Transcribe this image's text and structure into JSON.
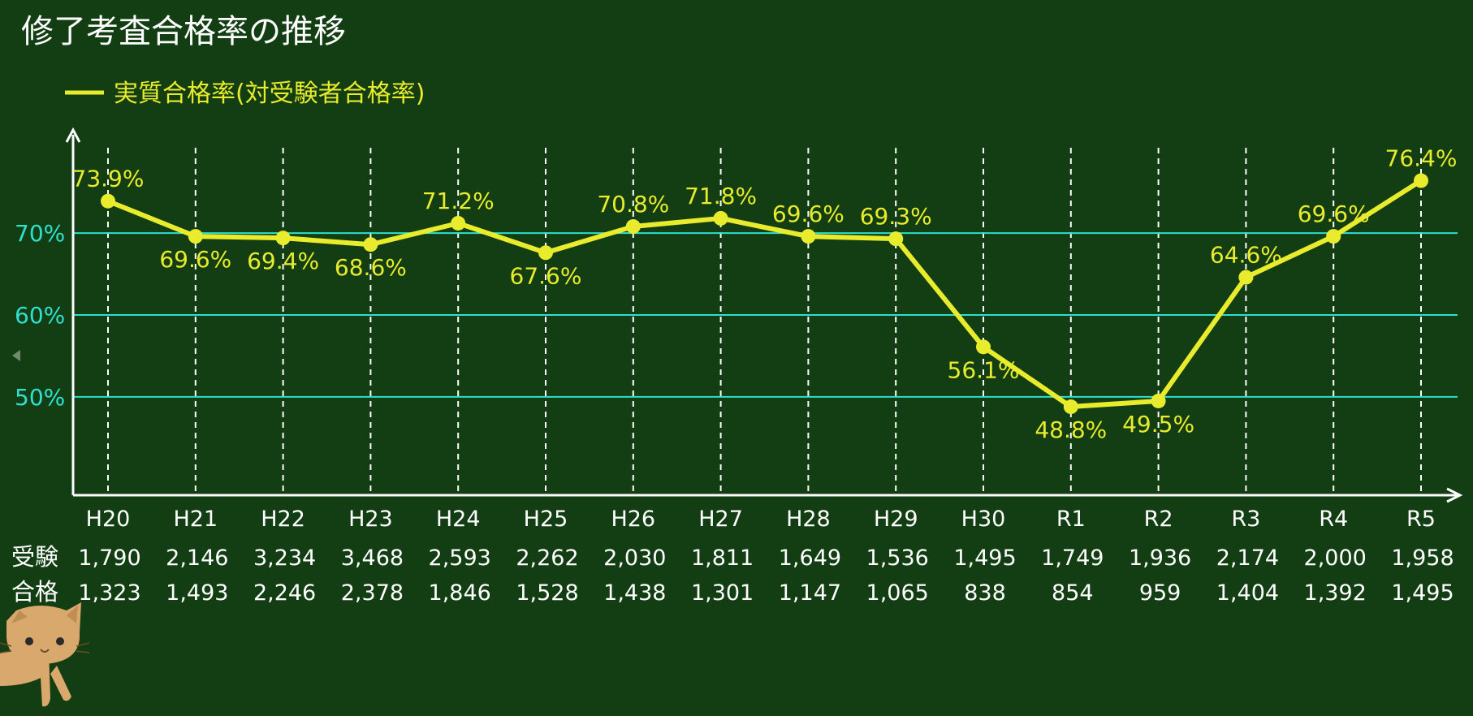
{
  "chart_data": {
    "type": "line",
    "title": "修了考査合格率の推移",
    "x": [
      "H20",
      "H21",
      "H22",
      "H23",
      "H24",
      "H25",
      "H26",
      "H27",
      "H28",
      "H29",
      "H30",
      "R1",
      "R2",
      "R3",
      "R4",
      "R5"
    ],
    "series": [
      {
        "name": "実質合格率(対受験者合格率)",
        "color": "#e8ec2c",
        "values": [
          73.9,
          69.6,
          69.4,
          68.6,
          71.2,
          67.6,
          70.8,
          71.8,
          69.6,
          69.3,
          56.1,
          48.8,
          49.5,
          64.6,
          69.6,
          76.4
        ],
        "labels": [
          "73.9%",
          "69.6%",
          "69.4%",
          "68.6%",
          "71.2%",
          "67.6%",
          "70.8%",
          "71.8%",
          "69.6%",
          "69.3%",
          "56.1%",
          "48.8%",
          "49.5%",
          "64.6%",
          "69.6%",
          "76.4%"
        ],
        "label_pos": [
          "above",
          "below",
          "below",
          "below",
          "above",
          "below",
          "above",
          "above",
          "above",
          "above",
          "below",
          "below",
          "below",
          "above",
          "above",
          "above"
        ]
      }
    ],
    "yticks": [
      50,
      60,
      70
    ],
    "ytick_labels": [
      "50%",
      "60%",
      "70%"
    ],
    "ylim": [
      38,
      82
    ],
    "grid": {
      "horizontal_color": "#2fe0cf",
      "vertical": "dashed",
      "vertical_color": "#ffffff"
    },
    "legend_position": "top-left",
    "table": {
      "rows": [
        {
          "header": "受験",
          "values": [
            "1,790",
            "2,146",
            "3,234",
            "3,468",
            "2,593",
            "2,262",
            "2,030",
            "1,811",
            "1,649",
            "1,536",
            "1,495",
            "1,749",
            "1,936",
            "2,174",
            "2,000",
            "1,958"
          ]
        },
        {
          "header": "合格",
          "values": [
            "1,323",
            "1,493",
            "2,246",
            "2,378",
            "1,846",
            "1,528",
            "1,438",
            "1,301",
            "1,147",
            "1,065",
            "838",
            "854",
            "959",
            "1,404",
            "1,392",
            "1,495"
          ]
        }
      ]
    }
  },
  "icons": {
    "cat": "cat-mascot-icon",
    "nav": "left-arrow-icon"
  },
  "colors": {
    "background": "#133d12",
    "axis": "#ffffff",
    "line": "#e8ec2c",
    "grid": "#2fe0cf",
    "cat": "#d9a86c"
  }
}
